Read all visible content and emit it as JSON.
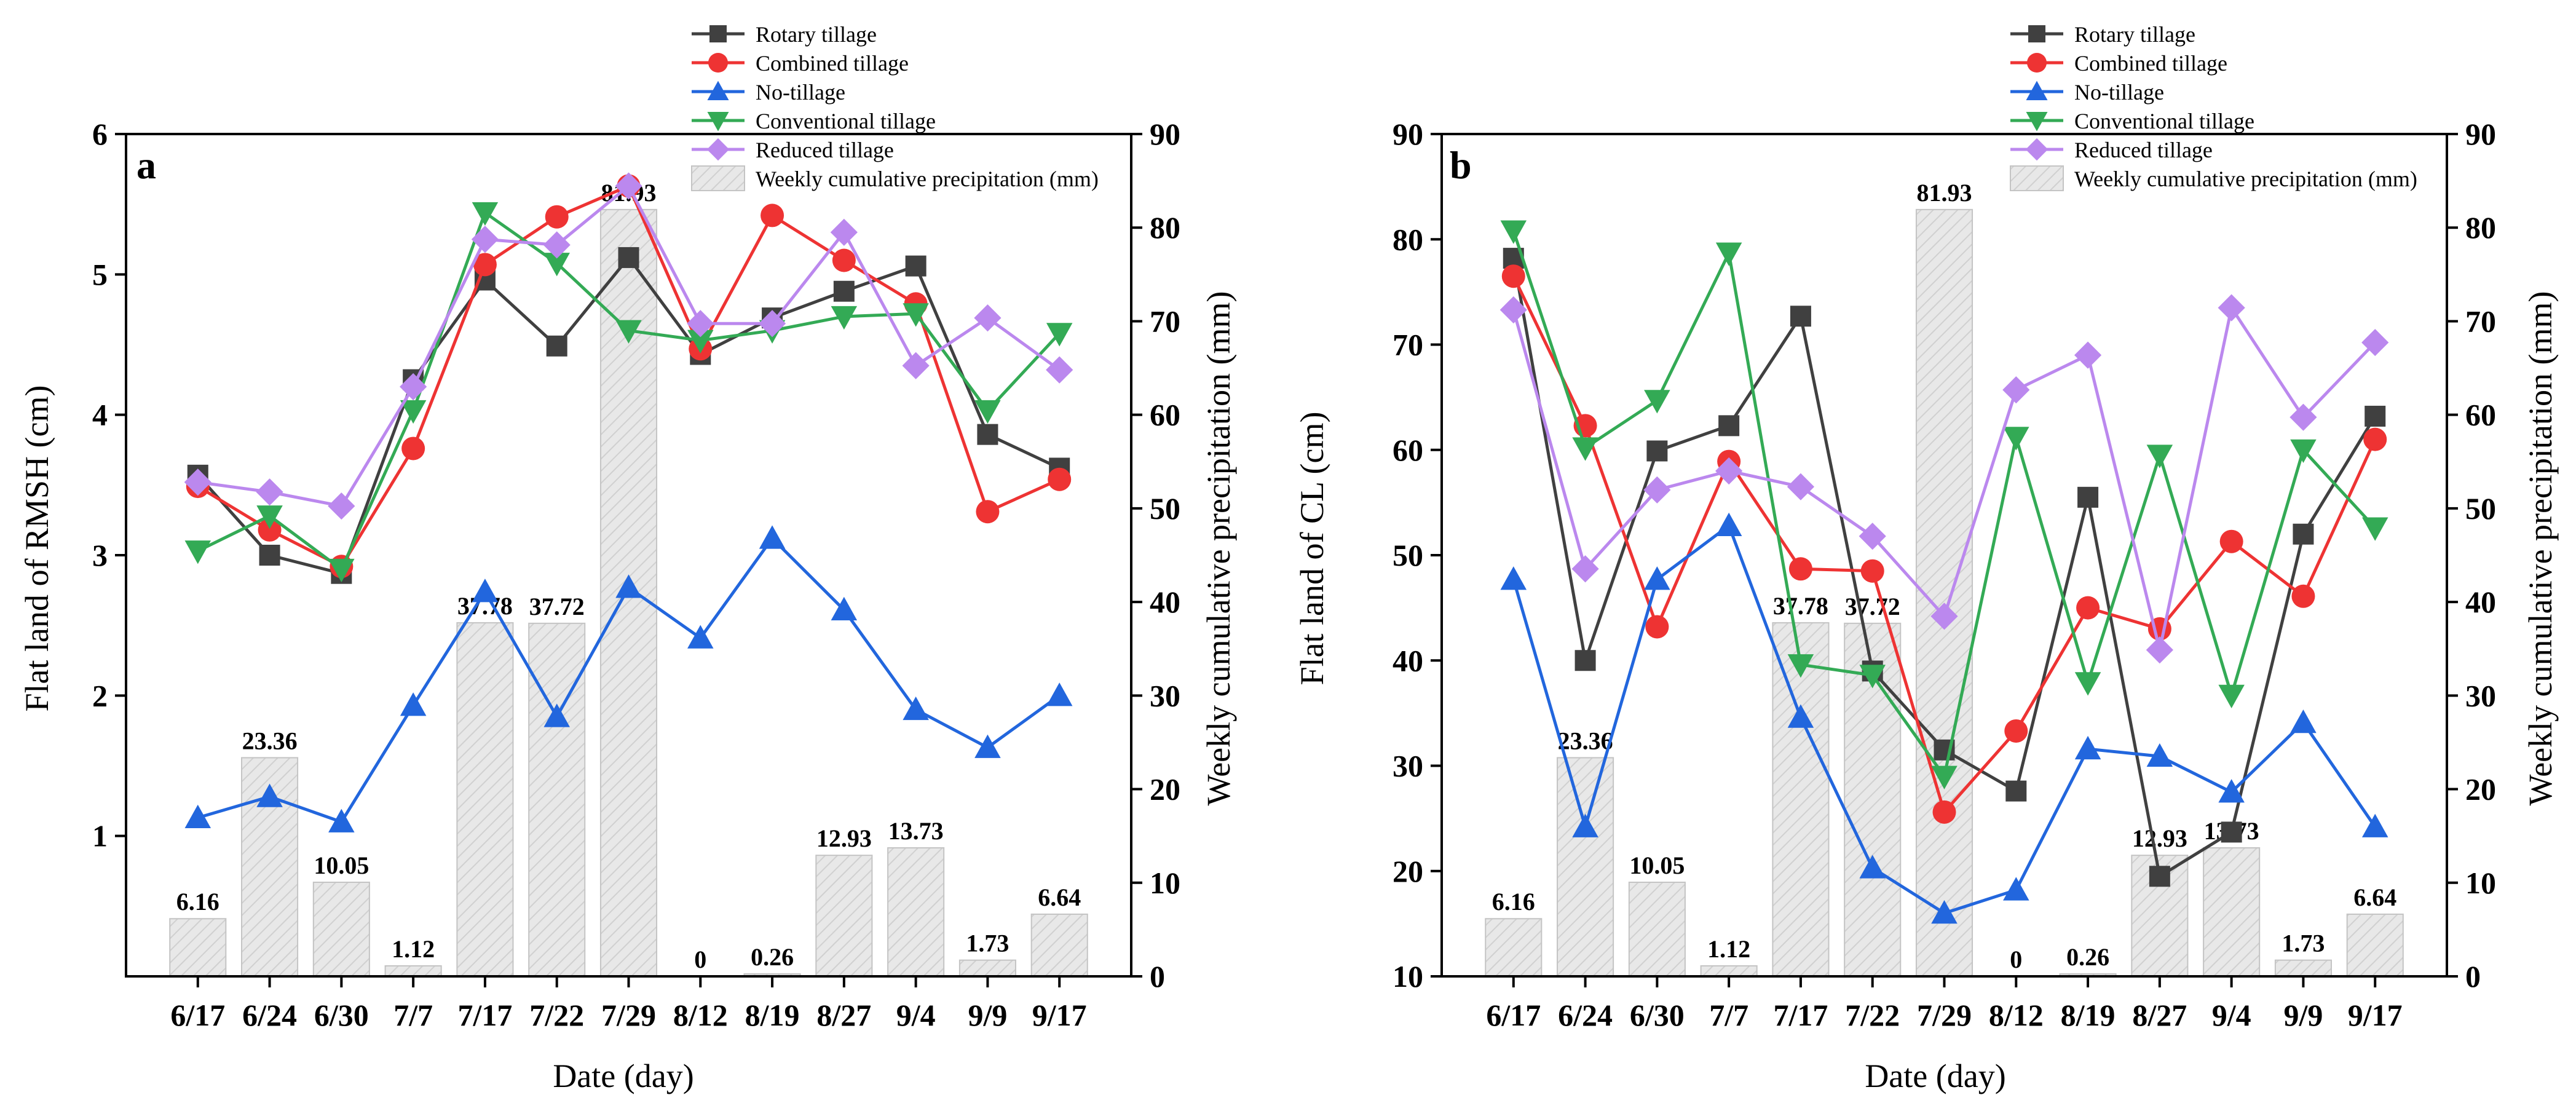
{
  "colors": {
    "rotary": "#404040",
    "combined": "#ee3333",
    "notill": "#2266dd",
    "conventional": "#33aa55",
    "reduced": "#bb88ee",
    "bar_fill": "#e6e6e6",
    "bar_stroke": "#c4c4c4"
  },
  "chart_data": [
    {
      "type": "line",
      "panel_label": "a",
      "categories": [
        "6/17",
        "6/24",
        "6/30",
        "7/7",
        "7/17",
        "7/22",
        "7/29",
        "8/12",
        "8/19",
        "8/27",
        "9/4",
        "9/9",
        "9/17"
      ],
      "xlabel": "Date (day)",
      "ylabel": "Flat land of RMSH (cm)",
      "y2label": "Weekly cumulative precipitation (mm)",
      "ylim": [
        0,
        6
      ],
      "yticks": [
        1,
        2,
        3,
        4,
        5,
        6
      ],
      "y2lim": [
        0,
        90
      ],
      "y2ticks": [
        0,
        10,
        20,
        30,
        40,
        50,
        60,
        70,
        80,
        90
      ],
      "series": [
        {
          "name": "Rotary tillage",
          "key": "rotary",
          "marker": "square",
          "values": [
            3.57,
            3.0,
            2.87,
            4.25,
            4.96,
            4.49,
            5.12,
            4.43,
            4.69,
            4.88,
            5.06,
            3.86,
            3.62
          ]
        },
        {
          "name": "Combined tillage",
          "key": "combined",
          "marker": "circle",
          "values": [
            3.49,
            3.18,
            2.92,
            3.76,
            5.07,
            5.41,
            5.63,
            4.47,
            5.42,
            5.1,
            4.79,
            3.31,
            3.54
          ]
        },
        {
          "name": "No-tillage",
          "key": "notill",
          "marker": "triangle-up",
          "values": [
            1.13,
            1.28,
            1.1,
            1.93,
            2.74,
            1.85,
            2.77,
            2.41,
            3.12,
            2.61,
            1.9,
            1.63,
            2.0
          ]
        },
        {
          "name": "Conventional tillage",
          "key": "conventional",
          "marker": "triangle-down",
          "values": [
            3.03,
            3.28,
            2.9,
            4.03,
            5.44,
            5.08,
            4.6,
            4.53,
            4.6,
            4.7,
            4.72,
            4.03,
            4.58
          ]
        },
        {
          "name": "Reduced tillage",
          "key": "reduced",
          "marker": "diamond",
          "values": [
            3.52,
            3.45,
            3.35,
            4.2,
            5.25,
            5.21,
            5.63,
            4.65,
            4.65,
            5.3,
            4.35,
            4.69,
            4.32
          ]
        }
      ],
      "bars": {
        "name": "Weekly cumulative precipitation (mm)",
        "values": [
          6.16,
          23.36,
          10.05,
          1.12,
          37.78,
          37.72,
          81.93,
          0,
          0.26,
          12.93,
          13.73,
          1.73,
          6.64
        ],
        "labels": [
          "6.16",
          "23.36",
          "10.05",
          "1.12",
          "37.78",
          "37.72",
          "81.93",
          "0",
          "0.26",
          "12.93",
          "13.73",
          "1.73",
          "6.64"
        ]
      },
      "legend_position": "top-center"
    },
    {
      "type": "line",
      "panel_label": "b",
      "categories": [
        "6/17",
        "6/24",
        "6/30",
        "7/7",
        "7/17",
        "7/22",
        "7/29",
        "8/12",
        "8/19",
        "8/27",
        "9/4",
        "9/9",
        "9/17"
      ],
      "xlabel": "Date (day)",
      "ylabel": "Flat land of CL (cm)",
      "y2label": "Weekly cumulative precipitation (mm)",
      "ylim": [
        10,
        90
      ],
      "yticks": [
        10,
        20,
        30,
        40,
        50,
        60,
        70,
        80,
        90
      ],
      "y2lim": [
        0,
        90
      ],
      "y2ticks": [
        0,
        10,
        20,
        30,
        40,
        50,
        60,
        70,
        80,
        90
      ],
      "series": [
        {
          "name": "Rotary tillage",
          "key": "rotary",
          "marker": "square",
          "values": [
            78.2,
            40.0,
            59.9,
            62.3,
            72.7,
            39.0,
            31.5,
            27.6,
            55.5,
            19.5,
            23.7,
            52.0,
            63.2
          ]
        },
        {
          "name": "Combined tillage",
          "key": "combined",
          "marker": "circle",
          "values": [
            76.5,
            62.3,
            43.2,
            58.9,
            48.7,
            48.5,
            25.6,
            33.3,
            45.0,
            43.0,
            51.3,
            46.1,
            61.0
          ]
        },
        {
          "name": "No-tillage",
          "key": "notill",
          "marker": "triangle-up",
          "values": [
            47.7,
            24.2,
            47.7,
            52.8,
            34.6,
            20.3,
            16.0,
            18.2,
            31.6,
            30.9,
            27.5,
            34.1,
            24.2
          ]
        },
        {
          "name": "Conventional tillage",
          "key": "conventional",
          "marker": "triangle-down",
          "values": [
            80.8,
            60.2,
            64.7,
            78.7,
            39.6,
            38.6,
            29.0,
            61.2,
            37.9,
            59.5,
            36.7,
            60.0,
            52.6
          ]
        },
        {
          "name": "Reduced tillage",
          "key": "reduced",
          "marker": "diamond",
          "values": [
            73.3,
            48.7,
            56.2,
            58.0,
            56.5,
            51.8,
            44.2,
            65.7,
            69.0,
            41.0,
            73.5,
            63.1,
            70.2
          ]
        }
      ],
      "bars": {
        "name": "Weekly cumulative precipitation (mm)",
        "values": [
          6.16,
          23.36,
          10.05,
          1.12,
          37.78,
          37.72,
          81.93,
          0,
          0.26,
          12.93,
          13.73,
          1.73,
          6.64
        ],
        "labels": [
          "6.16",
          "23.36",
          "10.05",
          "1.12",
          "37.78",
          "37.72",
          "81.93",
          "0",
          "0.26",
          "12.93",
          "13.73",
          "1.73",
          "6.64"
        ]
      },
      "legend_position": "top-center"
    }
  ]
}
